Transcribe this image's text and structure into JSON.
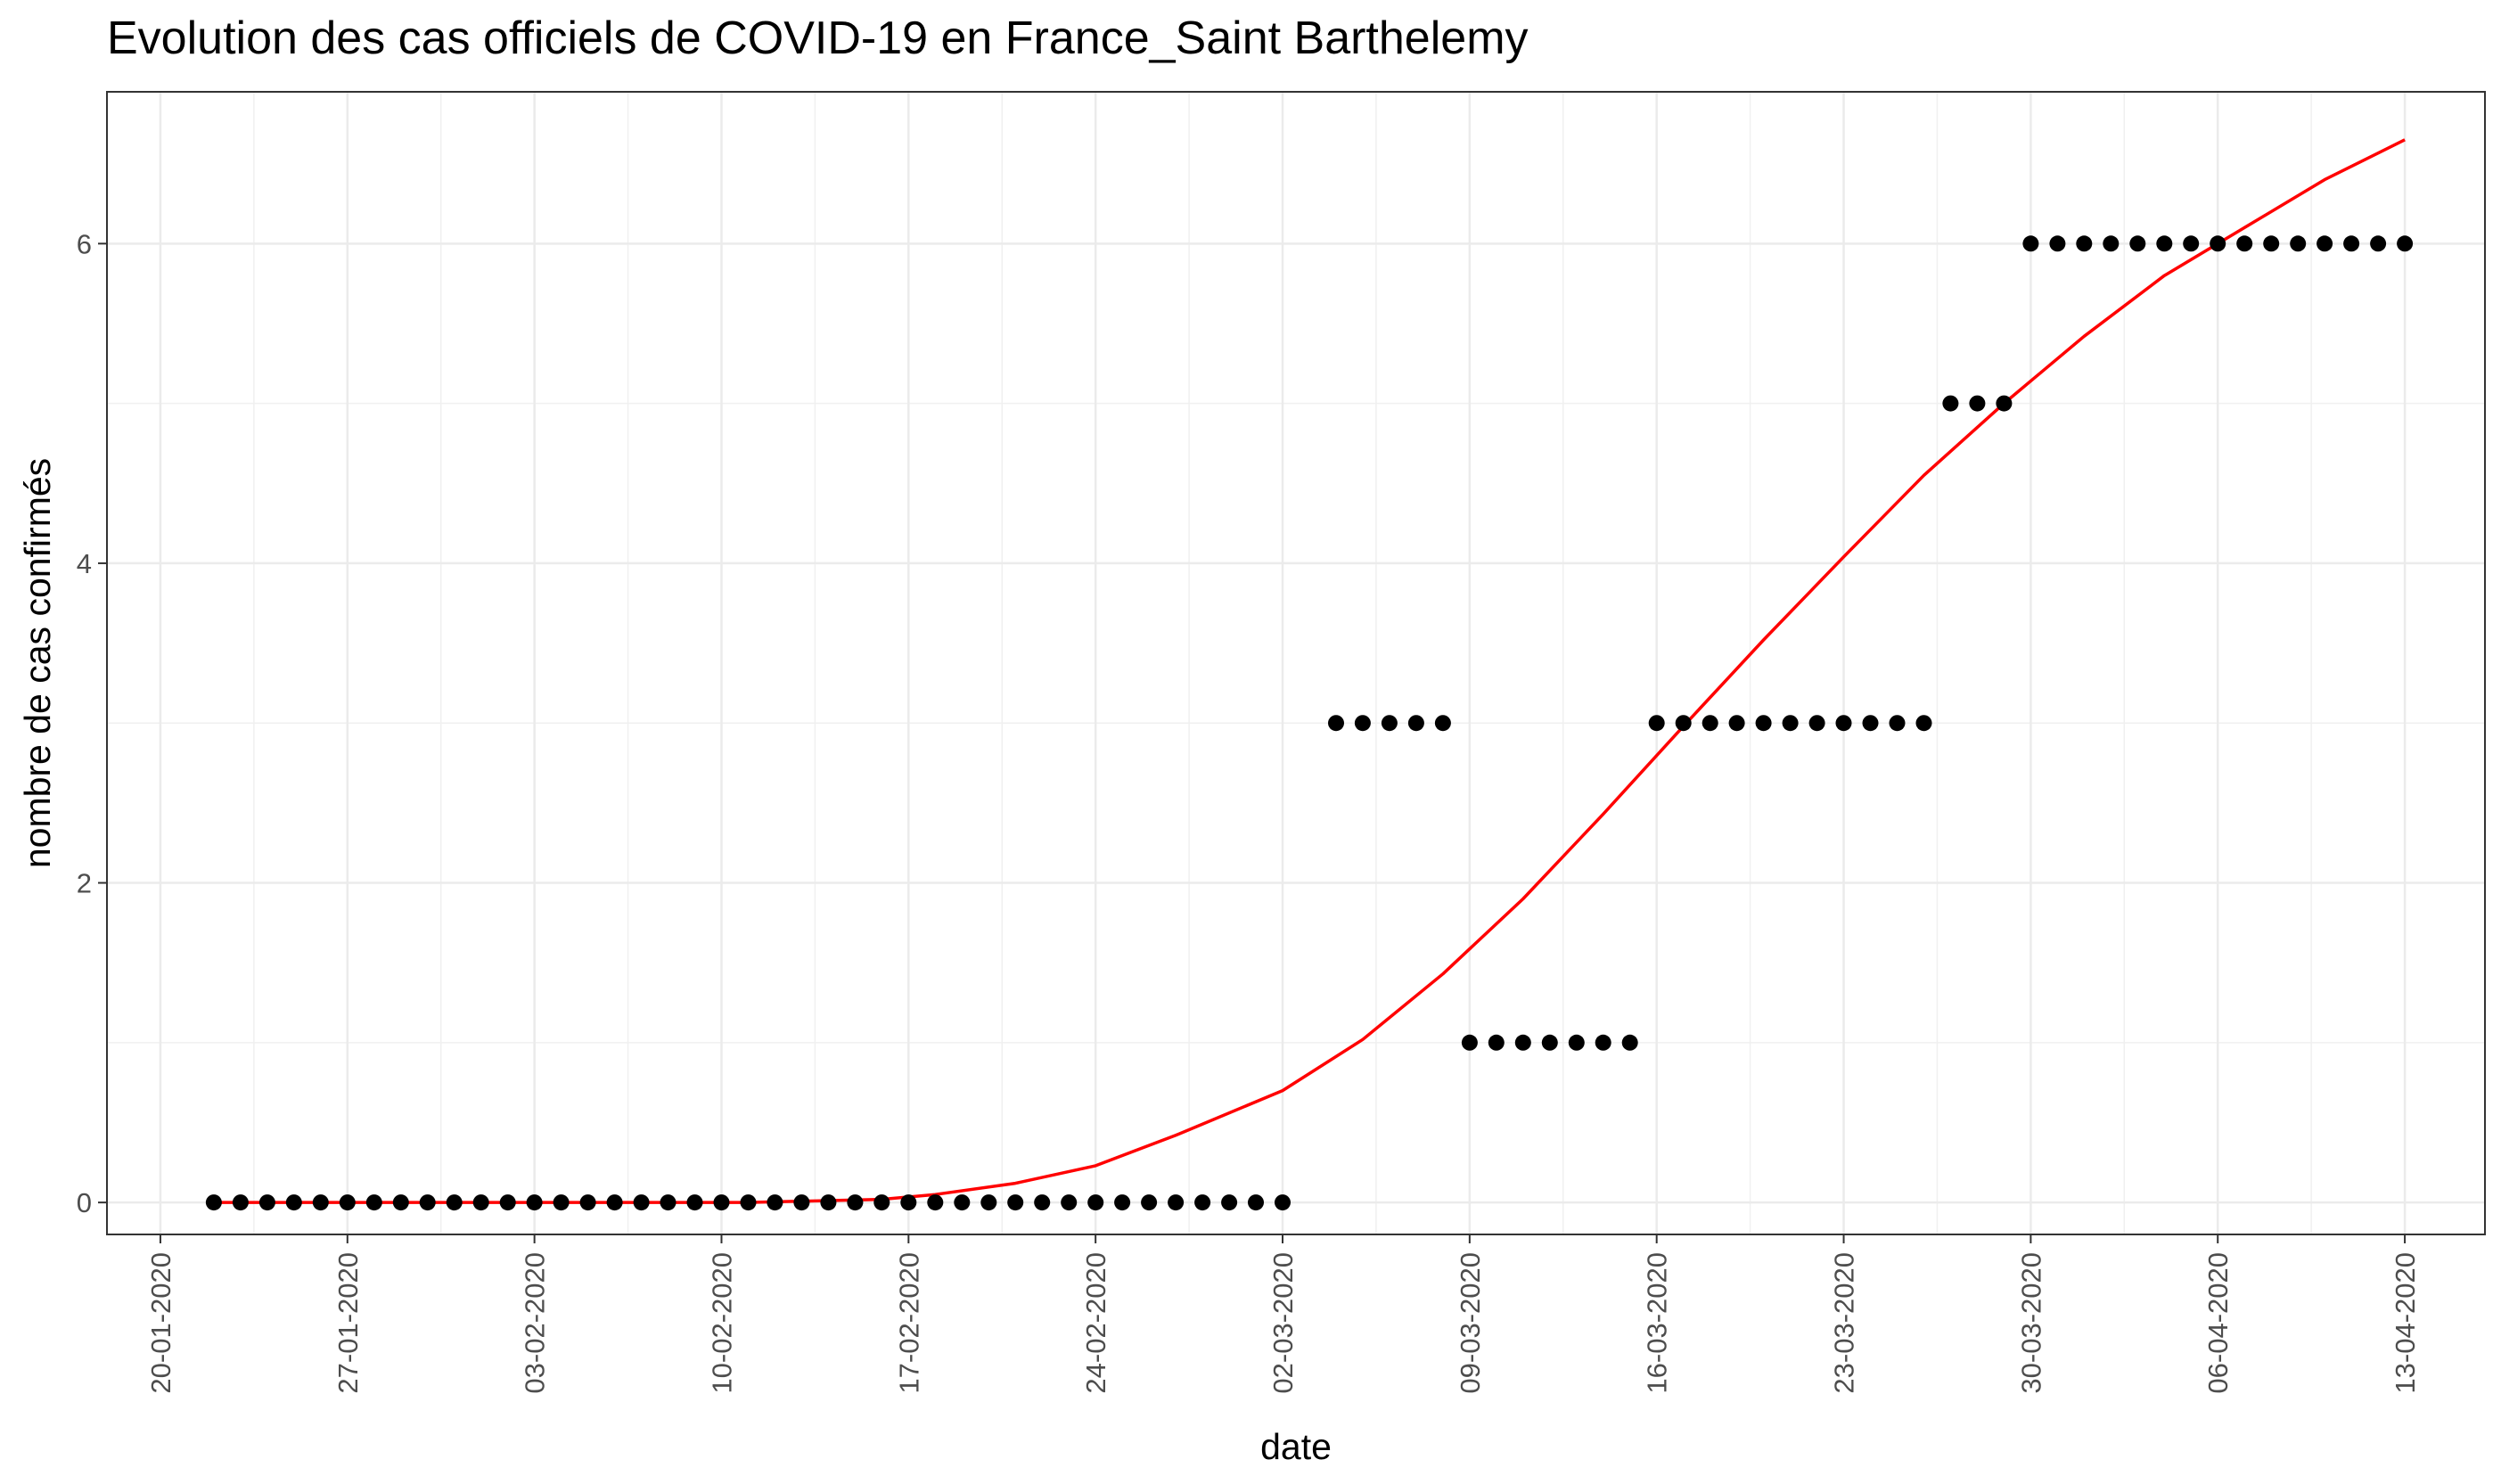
{
  "chart_data": {
    "type": "scatter",
    "title": "Evolution des cas officiels de COVID-19 en France_Saint Barthelemy",
    "xlabel": "date",
    "ylabel": "nombre de cas confirmés",
    "x_ticks": [
      "20-01-2020",
      "27-01-2020",
      "03-02-2020",
      "10-02-2020",
      "17-02-2020",
      "24-02-2020",
      "02-03-2020",
      "09-03-2020",
      "16-03-2020",
      "23-03-2020",
      "30-03-2020",
      "06-04-2020",
      "13-04-2020"
    ],
    "y_ticks": [
      0,
      2,
      4,
      6
    ],
    "xlim": [
      "2020-01-18",
      "2020-04-16"
    ],
    "ylim": [
      -0.2,
      6.95
    ],
    "grid": true,
    "series": [
      {
        "kind": "points",
        "color": "#000000",
        "x": [
          "2020-01-22",
          "2020-01-23",
          "2020-01-24",
          "2020-01-25",
          "2020-01-26",
          "2020-01-27",
          "2020-01-28",
          "2020-01-29",
          "2020-01-30",
          "2020-01-31",
          "2020-02-01",
          "2020-02-02",
          "2020-02-03",
          "2020-02-04",
          "2020-02-05",
          "2020-02-06",
          "2020-02-07",
          "2020-02-08",
          "2020-02-09",
          "2020-02-10",
          "2020-02-11",
          "2020-02-12",
          "2020-02-13",
          "2020-02-14",
          "2020-02-15",
          "2020-02-16",
          "2020-02-17",
          "2020-02-18",
          "2020-02-19",
          "2020-02-20",
          "2020-02-21",
          "2020-02-22",
          "2020-02-23",
          "2020-02-24",
          "2020-02-25",
          "2020-02-26",
          "2020-02-27",
          "2020-02-28",
          "2020-02-29",
          "2020-03-01",
          "2020-03-02",
          "2020-03-04",
          "2020-03-05",
          "2020-03-06",
          "2020-03-07",
          "2020-03-08",
          "2020-03-09",
          "2020-03-10",
          "2020-03-11",
          "2020-03-12",
          "2020-03-13",
          "2020-03-14",
          "2020-03-15",
          "2020-03-16",
          "2020-03-17",
          "2020-03-18",
          "2020-03-19",
          "2020-03-20",
          "2020-03-21",
          "2020-03-22",
          "2020-03-23",
          "2020-03-24",
          "2020-03-25",
          "2020-03-26",
          "2020-03-27",
          "2020-03-28",
          "2020-03-29",
          "2020-03-30",
          "2020-03-31",
          "2020-04-01",
          "2020-04-02",
          "2020-04-03",
          "2020-04-04",
          "2020-04-05",
          "2020-04-06",
          "2020-04-07",
          "2020-04-08",
          "2020-04-09",
          "2020-04-10",
          "2020-04-11",
          "2020-04-12",
          "2020-04-13"
        ],
        "y": [
          0,
          0,
          0,
          0,
          0,
          0,
          0,
          0,
          0,
          0,
          0,
          0,
          0,
          0,
          0,
          0,
          0,
          0,
          0,
          0,
          0,
          0,
          0,
          0,
          0,
          0,
          0,
          0,
          0,
          0,
          0,
          0,
          0,
          0,
          0,
          0,
          0,
          0,
          0,
          0,
          0,
          3,
          3,
          3,
          3,
          3,
          1,
          1,
          1,
          1,
          1,
          1,
          1,
          3,
          3,
          3,
          3,
          3,
          3,
          3,
          3,
          3,
          3,
          3,
          5,
          5,
          5,
          6,
          6,
          6,
          6,
          6,
          6,
          6,
          6,
          6,
          6,
          6,
          6,
          6,
          6,
          6
        ]
      },
      {
        "kind": "fit-line",
        "color": "#ff0000",
        "x": [
          "2020-01-22",
          "2020-01-27",
          "2020-02-01",
          "2020-02-06",
          "2020-02-11",
          "2020-02-16",
          "2020-02-18",
          "2020-02-21",
          "2020-02-24",
          "2020-02-27",
          "2020-03-02",
          "2020-03-05",
          "2020-03-08",
          "2020-03-11",
          "2020-03-14",
          "2020-03-17",
          "2020-03-20",
          "2020-03-23",
          "2020-03-26",
          "2020-03-29",
          "2020-04-01",
          "2020-04-04",
          "2020-04-07",
          "2020-04-10",
          "2020-04-13"
        ],
        "y": [
          0,
          0,
          0,
          0,
          0,
          0.02,
          0.05,
          0.12,
          0.23,
          0.42,
          0.7,
          1.02,
          1.43,
          1.9,
          2.43,
          2.98,
          3.52,
          4.04,
          4.55,
          5.0,
          5.42,
          5.8,
          6.1,
          6.4,
          6.65
        ]
      }
    ]
  }
}
